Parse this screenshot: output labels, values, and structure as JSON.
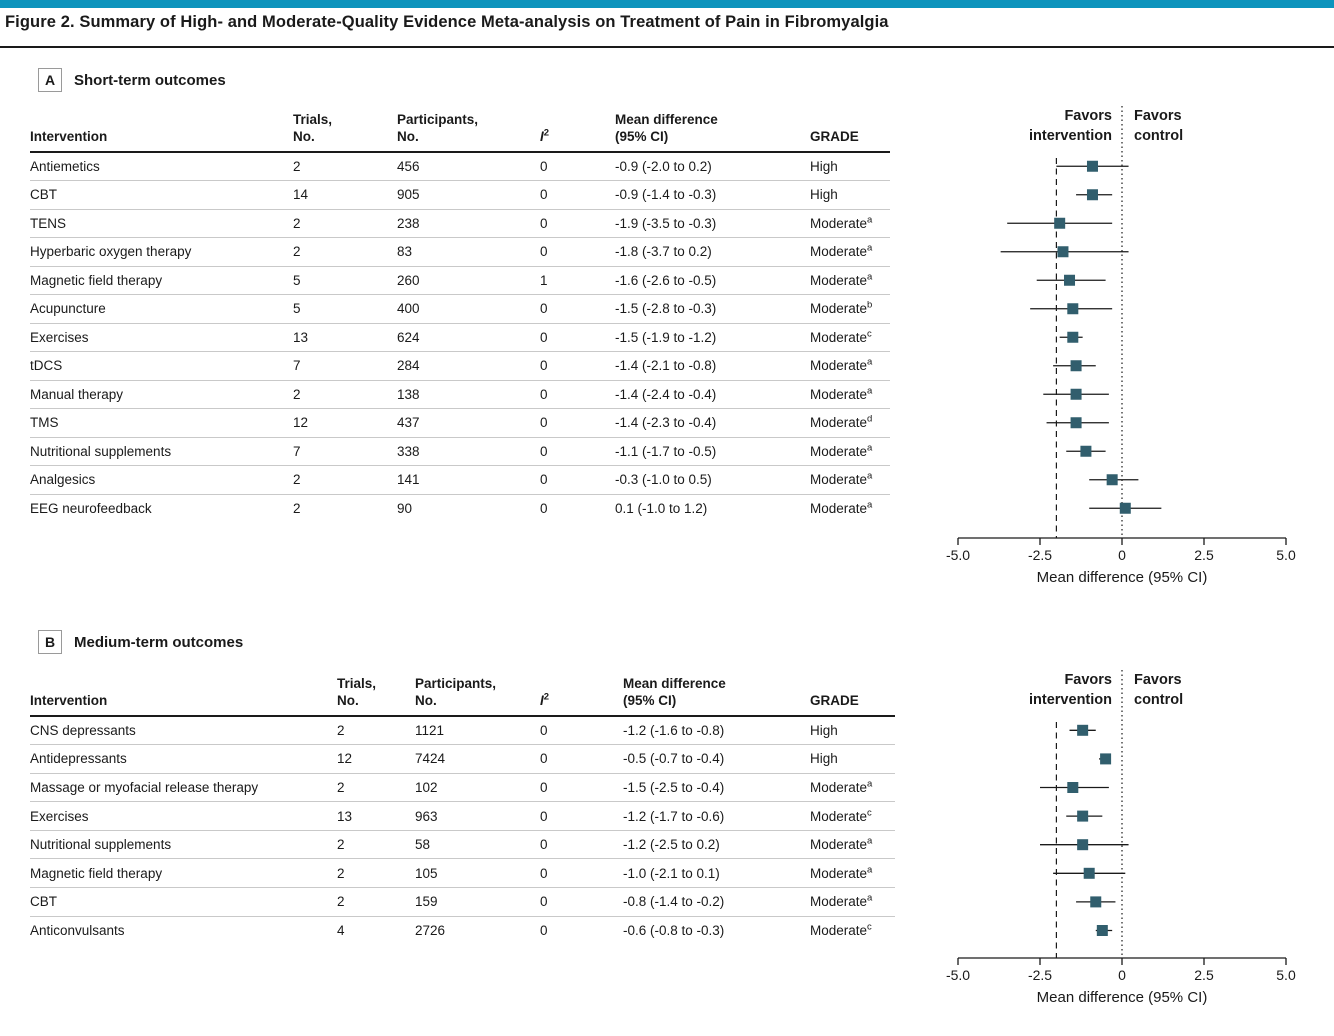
{
  "title": "Figure 2. Summary of High- and Moderate-Quality Evidence Meta-analysis on Treatment of Pain in Fibromyalgia",
  "colors": {
    "accent_bar": "#0d94bd",
    "marker": "#315e6d",
    "line": "#1a1a1a",
    "row_rule": "#c9c9c9"
  },
  "columns": [
    {
      "key": "intervention",
      "lines": [
        "Intervention"
      ]
    },
    {
      "key": "trials",
      "lines": [
        "Trials,",
        "No."
      ]
    },
    {
      "key": "participants",
      "lines": [
        "Participants,",
        "No."
      ]
    },
    {
      "key": "i2",
      "lines": [
        "I"
      ],
      "sup": "2",
      "italic": true
    },
    {
      "key": "md_text",
      "lines": [
        "Mean difference",
        "(95% CI)"
      ]
    },
    {
      "key": "grade",
      "lines": [
        "GRADE"
      ]
    }
  ],
  "axis": {
    "xlabel": "Mean difference (95% CI)",
    "xlim": [
      -5,
      5
    ],
    "tick_labels": [
      "-5.0",
      "-2.5",
      "0",
      "2.5",
      "5.0"
    ],
    "tick_values": [
      -5,
      -2.5,
      0,
      2.5,
      5
    ],
    "dashed_reference": -2.0,
    "dotted_reference": 0,
    "favors_left": [
      "Favors",
      "intervention"
    ],
    "favors_right": [
      "Favors",
      "control"
    ]
  },
  "panels": [
    {
      "label": "A",
      "heading": "Short-term outcomes",
      "rows": [
        {
          "intervention": "Antiemetics",
          "trials": "2",
          "participants": "456",
          "i2": "0",
          "md_text": "-0.9 (-2.0 to 0.2)",
          "grade": "High",
          "grade_sup": "",
          "md": -0.9,
          "lo": -2.0,
          "hi": 0.2
        },
        {
          "intervention": "CBT",
          "trials": "14",
          "participants": "905",
          "i2": "0",
          "md_text": "-0.9 (-1.4 to -0.3)",
          "grade": "High",
          "grade_sup": "",
          "md": -0.9,
          "lo": -1.4,
          "hi": -0.3
        },
        {
          "intervention": "TENS",
          "trials": "2",
          "participants": "238",
          "i2": "0",
          "md_text": "-1.9 (-3.5 to -0.3)",
          "grade": "Moderate",
          "grade_sup": "a",
          "md": -1.9,
          "lo": -3.5,
          "hi": -0.3
        },
        {
          "intervention": "Hyperbaric oxygen therapy",
          "trials": "2",
          "participants": "83",
          "i2": "0",
          "md_text": "-1.8 (-3.7 to 0.2)",
          "grade": "Moderate",
          "grade_sup": "a",
          "md": -1.8,
          "lo": -3.7,
          "hi": 0.2
        },
        {
          "intervention": "Magnetic field therapy",
          "trials": "5",
          "participants": "260",
          "i2": "1",
          "md_text": "-1.6 (-2.6 to -0.5)",
          "grade": "Moderate",
          "grade_sup": "a",
          "md": -1.6,
          "lo": -2.6,
          "hi": -0.5
        },
        {
          "intervention": "Acupuncture",
          "trials": "5",
          "participants": "400",
          "i2": "0",
          "md_text": "-1.5 (-2.8 to -0.3)",
          "grade": "Moderate",
          "grade_sup": "b",
          "md": -1.5,
          "lo": -2.8,
          "hi": -0.3
        },
        {
          "intervention": "Exercises",
          "trials": "13",
          "participants": "624",
          "i2": "0",
          "md_text": "-1.5 (-1.9 to -1.2)",
          "grade": "Moderate",
          "grade_sup": "c",
          "md": -1.5,
          "lo": -1.9,
          "hi": -1.2
        },
        {
          "intervention": "tDCS",
          "trials": "7",
          "participants": "284",
          "i2": "0",
          "md_text": "-1.4 (-2.1 to -0.8)",
          "grade": "Moderate",
          "grade_sup": "a",
          "md": -1.4,
          "lo": -2.1,
          "hi": -0.8
        },
        {
          "intervention": "Manual therapy",
          "trials": "2",
          "participants": "138",
          "i2": "0",
          "md_text": "-1.4 (-2.4 to -0.4)",
          "grade": "Moderate",
          "grade_sup": "a",
          "md": -1.4,
          "lo": -2.4,
          "hi": -0.4
        },
        {
          "intervention": "TMS",
          "trials": "12",
          "participants": "437",
          "i2": "0",
          "md_text": "-1.4 (-2.3 to -0.4)",
          "grade": "Moderate",
          "grade_sup": "d",
          "md": -1.4,
          "lo": -2.3,
          "hi": -0.4
        },
        {
          "intervention": "Nutritional supplements",
          "trials": "7",
          "participants": "338",
          "i2": "0",
          "md_text": "-1.1 (-1.7 to -0.5)",
          "grade": "Moderate",
          "grade_sup": "a",
          "md": -1.1,
          "lo": -1.7,
          "hi": -0.5
        },
        {
          "intervention": "Analgesics",
          "trials": "2",
          "participants": "141",
          "i2": "0",
          "md_text": "-0.3 (-1.0 to 0.5)",
          "grade": "Moderate",
          "grade_sup": "a",
          "md": -0.3,
          "lo": -1.0,
          "hi": 0.5
        },
        {
          "intervention": "EEG neurofeedback",
          "trials": "2",
          "participants": "90",
          "i2": "0",
          "md_text": "0.1 (-1.0 to 1.2)",
          "grade": "Moderate",
          "grade_sup": "a",
          "md": 0.1,
          "lo": -1.0,
          "hi": 1.2
        }
      ]
    },
    {
      "label": "B",
      "heading": "Medium-term outcomes",
      "rows": [
        {
          "intervention": "CNS depressants",
          "trials": "2",
          "participants": "1121",
          "i2": "0",
          "md_text": "-1.2 (-1.6 to -0.8)",
          "grade": "High",
          "grade_sup": "",
          "md": -1.2,
          "lo": -1.6,
          "hi": -0.8
        },
        {
          "intervention": "Antidepressants",
          "trials": "12",
          "participants": "7424",
          "i2": "0",
          "md_text": "-0.5 (-0.7 to -0.4)",
          "grade": "High",
          "grade_sup": "",
          "md": -0.5,
          "lo": -0.7,
          "hi": -0.4
        },
        {
          "intervention": "Massage or myofacial release therapy",
          "trials": "2",
          "participants": "102",
          "i2": "0",
          "md_text": "-1.5 (-2.5 to -0.4)",
          "grade": "Moderate",
          "grade_sup": "a",
          "md": -1.5,
          "lo": -2.5,
          "hi": -0.4
        },
        {
          "intervention": "Exercises",
          "trials": "13",
          "participants": "963",
          "i2": "0",
          "md_text": "-1.2 (-1.7 to -0.6)",
          "grade": "Moderate",
          "grade_sup": "c",
          "md": -1.2,
          "lo": -1.7,
          "hi": -0.6
        },
        {
          "intervention": "Nutritional supplements",
          "trials": "2",
          "participants": "58",
          "i2": "0",
          "md_text": "-1.2 (-2.5 to 0.2)",
          "grade": "Moderate",
          "grade_sup": "a",
          "md": -1.2,
          "lo": -2.5,
          "hi": 0.2
        },
        {
          "intervention": "Magnetic field therapy",
          "trials": "2",
          "participants": "105",
          "i2": "0",
          "md_text": "-1.0 (-2.1 to 0.1)",
          "grade": "Moderate",
          "grade_sup": "a",
          "md": -1.0,
          "lo": -2.1,
          "hi": 0.1
        },
        {
          "intervention": "CBT",
          "trials": "2",
          "participants": "159",
          "i2": "0",
          "md_text": "-0.8 (-1.4 to -0.2)",
          "grade": "Moderate",
          "grade_sup": "a",
          "md": -0.8,
          "lo": -1.4,
          "hi": -0.2
        },
        {
          "intervention": "Anticonvulsants",
          "trials": "4",
          "participants": "2726",
          "i2": "0",
          "md_text": "-0.6 (-0.8 to -0.3)",
          "grade": "Moderate",
          "grade_sup": "c",
          "md": -0.6,
          "lo": -0.8,
          "hi": -0.3
        }
      ]
    }
  ],
  "chart_data": [
    {
      "type": "scatter",
      "subtype": "forest-plot",
      "title": "Short-term outcomes",
      "categories": [
        "Antiemetics",
        "CBT",
        "TENS",
        "Hyperbaric oxygen therapy",
        "Magnetic field therapy",
        "Acupuncture",
        "Exercises",
        "tDCS",
        "Manual therapy",
        "TMS",
        "Nutritional supplements",
        "Analgesics",
        "EEG neurofeedback"
      ],
      "values": [
        -0.9,
        -0.9,
        -1.9,
        -1.8,
        -1.6,
        -1.5,
        -1.5,
        -1.4,
        -1.4,
        -1.4,
        -1.1,
        -0.3,
        0.1
      ],
      "ci_low": [
        -2.0,
        -1.4,
        -3.5,
        -3.7,
        -2.6,
        -2.8,
        -1.9,
        -2.1,
        -2.4,
        -2.3,
        -1.7,
        -1.0,
        -1.0
      ],
      "ci_high": [
        0.2,
        -0.3,
        -0.3,
        0.2,
        -0.5,
        -0.3,
        -1.2,
        -0.8,
        -0.4,
        -0.4,
        -0.5,
        0.5,
        1.2
      ],
      "xlabel": "Mean difference (95% CI)",
      "xlim": [
        -5,
        5
      ],
      "xticks": [
        -5,
        -2.5,
        0,
        2.5,
        5
      ],
      "reference_lines": {
        "dashed": -2.0,
        "dotted": 0
      },
      "annotations": [
        "Favors intervention",
        "Favors control"
      ]
    },
    {
      "type": "scatter",
      "subtype": "forest-plot",
      "title": "Medium-term outcomes",
      "categories": [
        "CNS depressants",
        "Antidepressants",
        "Massage or myofacial release therapy",
        "Exercises",
        "Nutritional supplements",
        "Magnetic field therapy",
        "CBT",
        "Anticonvulsants"
      ],
      "values": [
        -1.2,
        -0.5,
        -1.5,
        -1.2,
        -1.2,
        -1.0,
        -0.8,
        -0.6
      ],
      "ci_low": [
        -1.6,
        -0.7,
        -2.5,
        -1.7,
        -2.5,
        -2.1,
        -1.4,
        -0.8
      ],
      "ci_high": [
        -0.8,
        -0.4,
        -0.4,
        -0.6,
        0.2,
        0.1,
        -0.2,
        -0.3
      ],
      "xlabel": "Mean difference (95% CI)",
      "xlim": [
        -5,
        5
      ],
      "xticks": [
        -5,
        -2.5,
        0,
        2.5,
        5
      ],
      "reference_lines": {
        "dashed": -2.0,
        "dotted": 0
      },
      "annotations": [
        "Favors intervention",
        "Favors control"
      ]
    }
  ]
}
